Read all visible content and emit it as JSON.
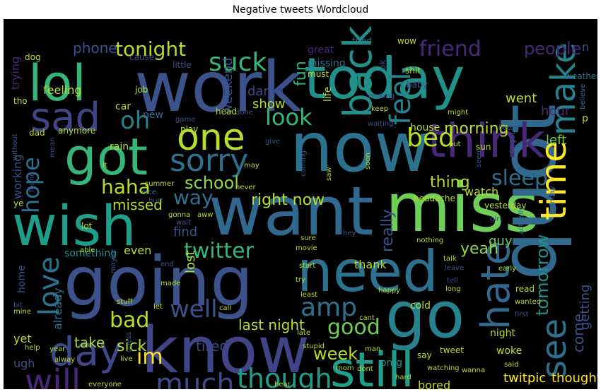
{
  "chart_data": {
    "type": "wordcloud",
    "title": "Negative tweets Wordcloud",
    "background": "#000000",
    "words": [
      {
        "text": "work",
        "c": "#3b528b"
      },
      {
        "text": "today",
        "c": "#21918c"
      },
      {
        "text": "now",
        "c": "#2c728e"
      },
      {
        "text": "got",
        "c": "#35b779"
      },
      {
        "text": "want",
        "c": "#31688e"
      },
      {
        "text": "miss",
        "c": "#6ece58"
      },
      {
        "text": "wish",
        "c": "#1f9e89"
      },
      {
        "text": "going",
        "c": "#3b528b"
      },
      {
        "text": "need",
        "c": "#2c728e"
      },
      {
        "text": "know",
        "c": "#414487"
      },
      {
        "text": "quot",
        "c": "#31688e"
      },
      {
        "text": "go",
        "c": "#26828e"
      },
      {
        "text": "still",
        "c": "#1f9e89"
      },
      {
        "text": "lol",
        "c": "#35b779"
      },
      {
        "text": "sad",
        "c": "#414487"
      },
      {
        "text": "one",
        "c": "#b5de2b"
      },
      {
        "text": "think",
        "c": "#482878"
      },
      {
        "text": "day",
        "c": "#3e4989"
      },
      {
        "text": "back",
        "c": "#21918c"
      },
      {
        "text": "feel",
        "c": "#26828e"
      },
      {
        "text": "sorry",
        "c": "#2c728e"
      },
      {
        "text": "hate",
        "c": "#31688e"
      },
      {
        "text": "time",
        "c": "#fde725"
      },
      {
        "text": "make",
        "c": "#26828e"
      },
      {
        "text": "much",
        "c": "#3e4989"
      },
      {
        "text": "will",
        "c": "#482878"
      },
      {
        "text": "love",
        "c": "#2c728e"
      },
      {
        "text": "though",
        "c": "#1f9e89"
      },
      {
        "text": "see",
        "c": "#2c728e"
      },
      {
        "text": "suck",
        "c": "#35b779"
      },
      {
        "text": "amp",
        "c": "#2c728e"
      },
      {
        "text": "oh",
        "c": "#26828e"
      },
      {
        "text": "bed",
        "c": "#b5de2b"
      },
      {
        "text": "look",
        "c": "#35b779"
      },
      {
        "text": "hope",
        "c": "#2c728e"
      },
      {
        "text": "sleep",
        "c": "#2c728e"
      },
      {
        "text": "twitter",
        "c": "#35b779"
      },
      {
        "text": "tonight",
        "c": "#b5de2b"
      },
      {
        "text": "friend",
        "c": "#482878"
      },
      {
        "text": "good",
        "c": "#6ece58"
      },
      {
        "text": "well",
        "c": "#3b528b"
      },
      {
        "text": "bad",
        "c": "#b5de2b"
      },
      {
        "text": "im",
        "c": "#fde725"
      },
      {
        "text": "haha",
        "c": "#b5de2b"
      },
      {
        "text": "school",
        "c": "#90d743"
      },
      {
        "text": "way",
        "c": "#2c728e"
      },
      {
        "text": "tomorrow",
        "c": "#21918c"
      },
      {
        "text": "people",
        "c": "#482878"
      },
      {
        "text": "morning",
        "c": "#b5de2b"
      },
      {
        "text": "right now",
        "c": "#b5de2b"
      },
      {
        "text": "last night",
        "c": "#b5de2b"
      },
      {
        "text": "phone",
        "c": "#3b528b"
      },
      {
        "text": "fun",
        "c": "#35b779"
      },
      {
        "text": "really",
        "c": "#3b528b"
      },
      {
        "text": "thing",
        "c": "#b5de2b"
      },
      {
        "text": "week",
        "c": "#b5de2b"
      },
      {
        "text": "tired",
        "c": "#3e4989"
      },
      {
        "text": "sick",
        "c": "#b5de2b"
      },
      {
        "text": "take",
        "c": "#b5de2b"
      },
      {
        "text": "yeah",
        "c": "#90d743"
      },
      {
        "text": "missed",
        "c": "#b5de2b"
      },
      {
        "text": "getting",
        "c": "#3b528b"
      },
      {
        "text": "come",
        "c": "#3b528b"
      },
      {
        "text": "find",
        "c": "#3b528b"
      },
      {
        "text": "lost",
        "c": "#b5de2b"
      },
      {
        "text": "hour",
        "c": "#482878"
      },
      {
        "text": "went",
        "c": "#b5de2b"
      },
      {
        "text": "left",
        "c": "#6ece58"
      },
      {
        "text": "show",
        "c": "#b5de2b"
      },
      {
        "text": "damn",
        "c": "#3e4989"
      },
      {
        "text": "weekend",
        "c": "#3b528b"
      },
      {
        "text": "working",
        "c": "#3b528b"
      },
      {
        "text": "twitpic",
        "c": "#fde725"
      },
      {
        "text": "thought",
        "c": "#fde725"
      },
      {
        "text": "guy",
        "c": "#6ece58"
      },
      {
        "text": "watch",
        "c": "#b5de2b"
      },
      {
        "text": "feeling",
        "c": "#b5de2b"
      },
      {
        "text": "trying",
        "c": "#482878"
      },
      {
        "text": "already",
        "c": "#2c728e"
      },
      {
        "text": "thank",
        "c": "#b5de2b"
      },
      {
        "text": "even",
        "c": "#b5de2b"
      },
      {
        "text": "something",
        "c": "#21918c"
      },
      {
        "text": "home",
        "c": "#3b528b"
      },
      {
        "text": "ugh",
        "c": "#3b528b"
      },
      {
        "text": "yet",
        "c": "#b5de2b"
      },
      {
        "text": "omg",
        "c": "#21918c"
      },
      {
        "text": "bored",
        "c": "#b5de2b"
      },
      {
        "text": "night",
        "c": "#b5de2b"
      },
      {
        "text": "woke",
        "c": "#b5de2b"
      },
      {
        "text": "new",
        "c": "#2c728e"
      },
      {
        "text": "house",
        "c": "#b5de2b"
      },
      {
        "text": "life",
        "c": "#b5de2b"
      },
      {
        "text": "missing",
        "c": "#2c728e"
      },
      {
        "text": "great",
        "c": "#482878"
      },
      {
        "text": "cold",
        "c": "#b5de2b"
      },
      {
        "text": "rain",
        "c": "#b5de2b"
      },
      {
        "text": "car",
        "c": "#b5de2b"
      },
      {
        "text": "dog",
        "c": "#b5de2b"
      },
      {
        "text": "cause",
        "c": "#3b528b"
      },
      {
        "text": "little",
        "c": "#3b528b"
      },
      {
        "text": "must",
        "c": "#b5de2b"
      },
      {
        "text": "tried",
        "c": "#2c728e"
      },
      {
        "text": "wow",
        "c": "#b5de2b"
      },
      {
        "text": "ok",
        "c": "#3b528b"
      },
      {
        "text": "n",
        "c": "#3b528b"
      },
      {
        "text": "weather",
        "c": "#2c728e"
      },
      {
        "text": "baby",
        "c": "#3b528b"
      },
      {
        "text": "shit",
        "c": "#b5de2b"
      },
      {
        "text": "moking",
        "c": "#3b528b"
      },
      {
        "text": "believe",
        "c": "#2c728e"
      },
      {
        "text": "job",
        "c": "#b5de2b"
      },
      {
        "text": "tho",
        "c": "#b5de2b"
      },
      {
        "text": "dad",
        "c": "#b5de2b"
      },
      {
        "text": "anymore",
        "c": "#b5de2b"
      },
      {
        "text": "play",
        "c": "#b5de2b"
      },
      {
        "text": "game",
        "c": "#3b528b"
      },
      {
        "text": "head",
        "c": "#b5de2b"
      },
      {
        "text": "done",
        "c": "#3b528b"
      },
      {
        "text": "keep",
        "c": "#b5de2b"
      },
      {
        "text": "waiting",
        "c": "#3b528b"
      },
      {
        "text": "might",
        "c": "#b5de2b"
      },
      {
        "text": "better",
        "c": "#3b528b"
      },
      {
        "text": "p",
        "c": "#b5de2b"
      },
      {
        "text": "give",
        "c": "#3b528b"
      },
      {
        "text": "put",
        "c": "#b5de2b"
      },
      {
        "text": "sun",
        "c": "#b5de2b"
      },
      {
        "text": "forgot",
        "c": "#3b528b"
      },
      {
        "text": "seem",
        "c": "#3b528b"
      },
      {
        "text": "summer",
        "c": "#b5de2b"
      },
      {
        "text": "nice",
        "c": "#2c728e"
      },
      {
        "text": "hurt",
        "c": "#3b528b"
      },
      {
        "text": "yesterday",
        "c": "#b5de2b"
      },
      {
        "text": "headache",
        "c": "#b5de2b"
      },
      {
        "text": "girl",
        "c": "#3b528b"
      },
      {
        "text": "may",
        "c": "#b5de2b"
      },
      {
        "text": "never",
        "c": "#b5de2b"
      },
      {
        "text": "gonna",
        "c": "#b5de2b"
      },
      {
        "text": "wait",
        "c": "#3b528b"
      },
      {
        "text": "aww",
        "c": "#b5de2b"
      },
      {
        "text": "hey",
        "c": "#3b528b"
      },
      {
        "text": "lot",
        "c": "#b5de2b"
      },
      {
        "text": "able",
        "c": "#b5de2b"
      },
      {
        "text": "ye",
        "c": "#b5de2b"
      },
      {
        "text": "found",
        "c": "#3b528b"
      },
      {
        "text": "actually",
        "c": "#2c728e"
      },
      {
        "text": "movie",
        "c": "#b5de2b"
      },
      {
        "text": "sure",
        "c": "#b5de2b"
      },
      {
        "text": "start",
        "c": "#b5de2b"
      },
      {
        "text": "talk",
        "c": "#b5de2b"
      },
      {
        "text": "leave",
        "c": "#3b528b"
      },
      {
        "text": "tell",
        "c": "#3b528b"
      },
      {
        "text": "early",
        "c": "#b5de2b"
      },
      {
        "text": "long",
        "c": "#b5de2b"
      },
      {
        "text": "happy",
        "c": "#b5de2b"
      },
      {
        "text": "read",
        "c": "#b5de2b"
      },
      {
        "text": "wanted",
        "c": "#b5de2b"
      },
      {
        "text": "first",
        "c": "#3b528b"
      },
      {
        "text": "stuff",
        "c": "#b5de2b"
      },
      {
        "text": "let",
        "c": "#b5de2b"
      },
      {
        "text": "call",
        "c": "#b5de2b"
      },
      {
        "text": "late",
        "c": "#b5de2b"
      },
      {
        "text": "stupid",
        "c": "#b5de2b"
      },
      {
        "text": "cant",
        "c": "#b5de2b"
      },
      {
        "text": "least",
        "c": "#b5de2b"
      },
      {
        "text": "maybe",
        "c": "#3b528b"
      },
      {
        "text": "made",
        "c": "#b5de2b"
      },
      {
        "text": "mine",
        "c": "#b5de2b"
      },
      {
        "text": "bit",
        "c": "#3b528b"
      },
      {
        "text": "help",
        "c": "#b5de2b"
      },
      {
        "text": "guess",
        "c": "#3b528b"
      },
      {
        "text": "mom",
        "c": "#b5de2b"
      },
      {
        "text": "man",
        "c": "#b5de2b"
      },
      {
        "text": "dont",
        "c": "#b5de2b"
      },
      {
        "text": "hard",
        "c": "#b5de2b"
      },
      {
        "text": "say",
        "c": "#b5de2b"
      },
      {
        "text": "tweet",
        "c": "#b5de2b"
      },
      {
        "text": "said",
        "c": "#b5de2b"
      },
      {
        "text": "live",
        "c": "#b5de2b"
      },
      {
        "text": "everyone",
        "c": "#b5de2b"
      },
      {
        "text": "bit ly",
        "c": "#3b528b"
      },
      {
        "text": "hear",
        "c": "#b5de2b"
      },
      {
        "text": "someone",
        "c": "#3b528b"
      },
      {
        "text": "watching",
        "c": "#b5de2b"
      },
      {
        "text": "wanna",
        "c": "#b5de2b"
      },
      {
        "text": "end",
        "c": "#3b528b"
      },
      {
        "text": "try",
        "c": "#b5de2b"
      },
      {
        "text": "lt",
        "c": "#b5de2b"
      },
      {
        "text": "coming",
        "c": "#3b528b"
      },
      {
        "text": "without",
        "c": "#3b528b"
      },
      {
        "text": "mean",
        "c": "#3b528b"
      },
      {
        "text": "soon",
        "c": "#b5de2b"
      },
      {
        "text": "year",
        "c": "#b5de2b"
      },
      {
        "text": "alway",
        "c": "#b5de2b"
      },
      {
        "text": "saw",
        "c": "#b5de2b"
      },
      {
        "text": "nothing",
        "c": "#b5de2b"
      },
      {
        "text": "monday",
        "c": "#3b528b"
      }
    ]
  }
}
